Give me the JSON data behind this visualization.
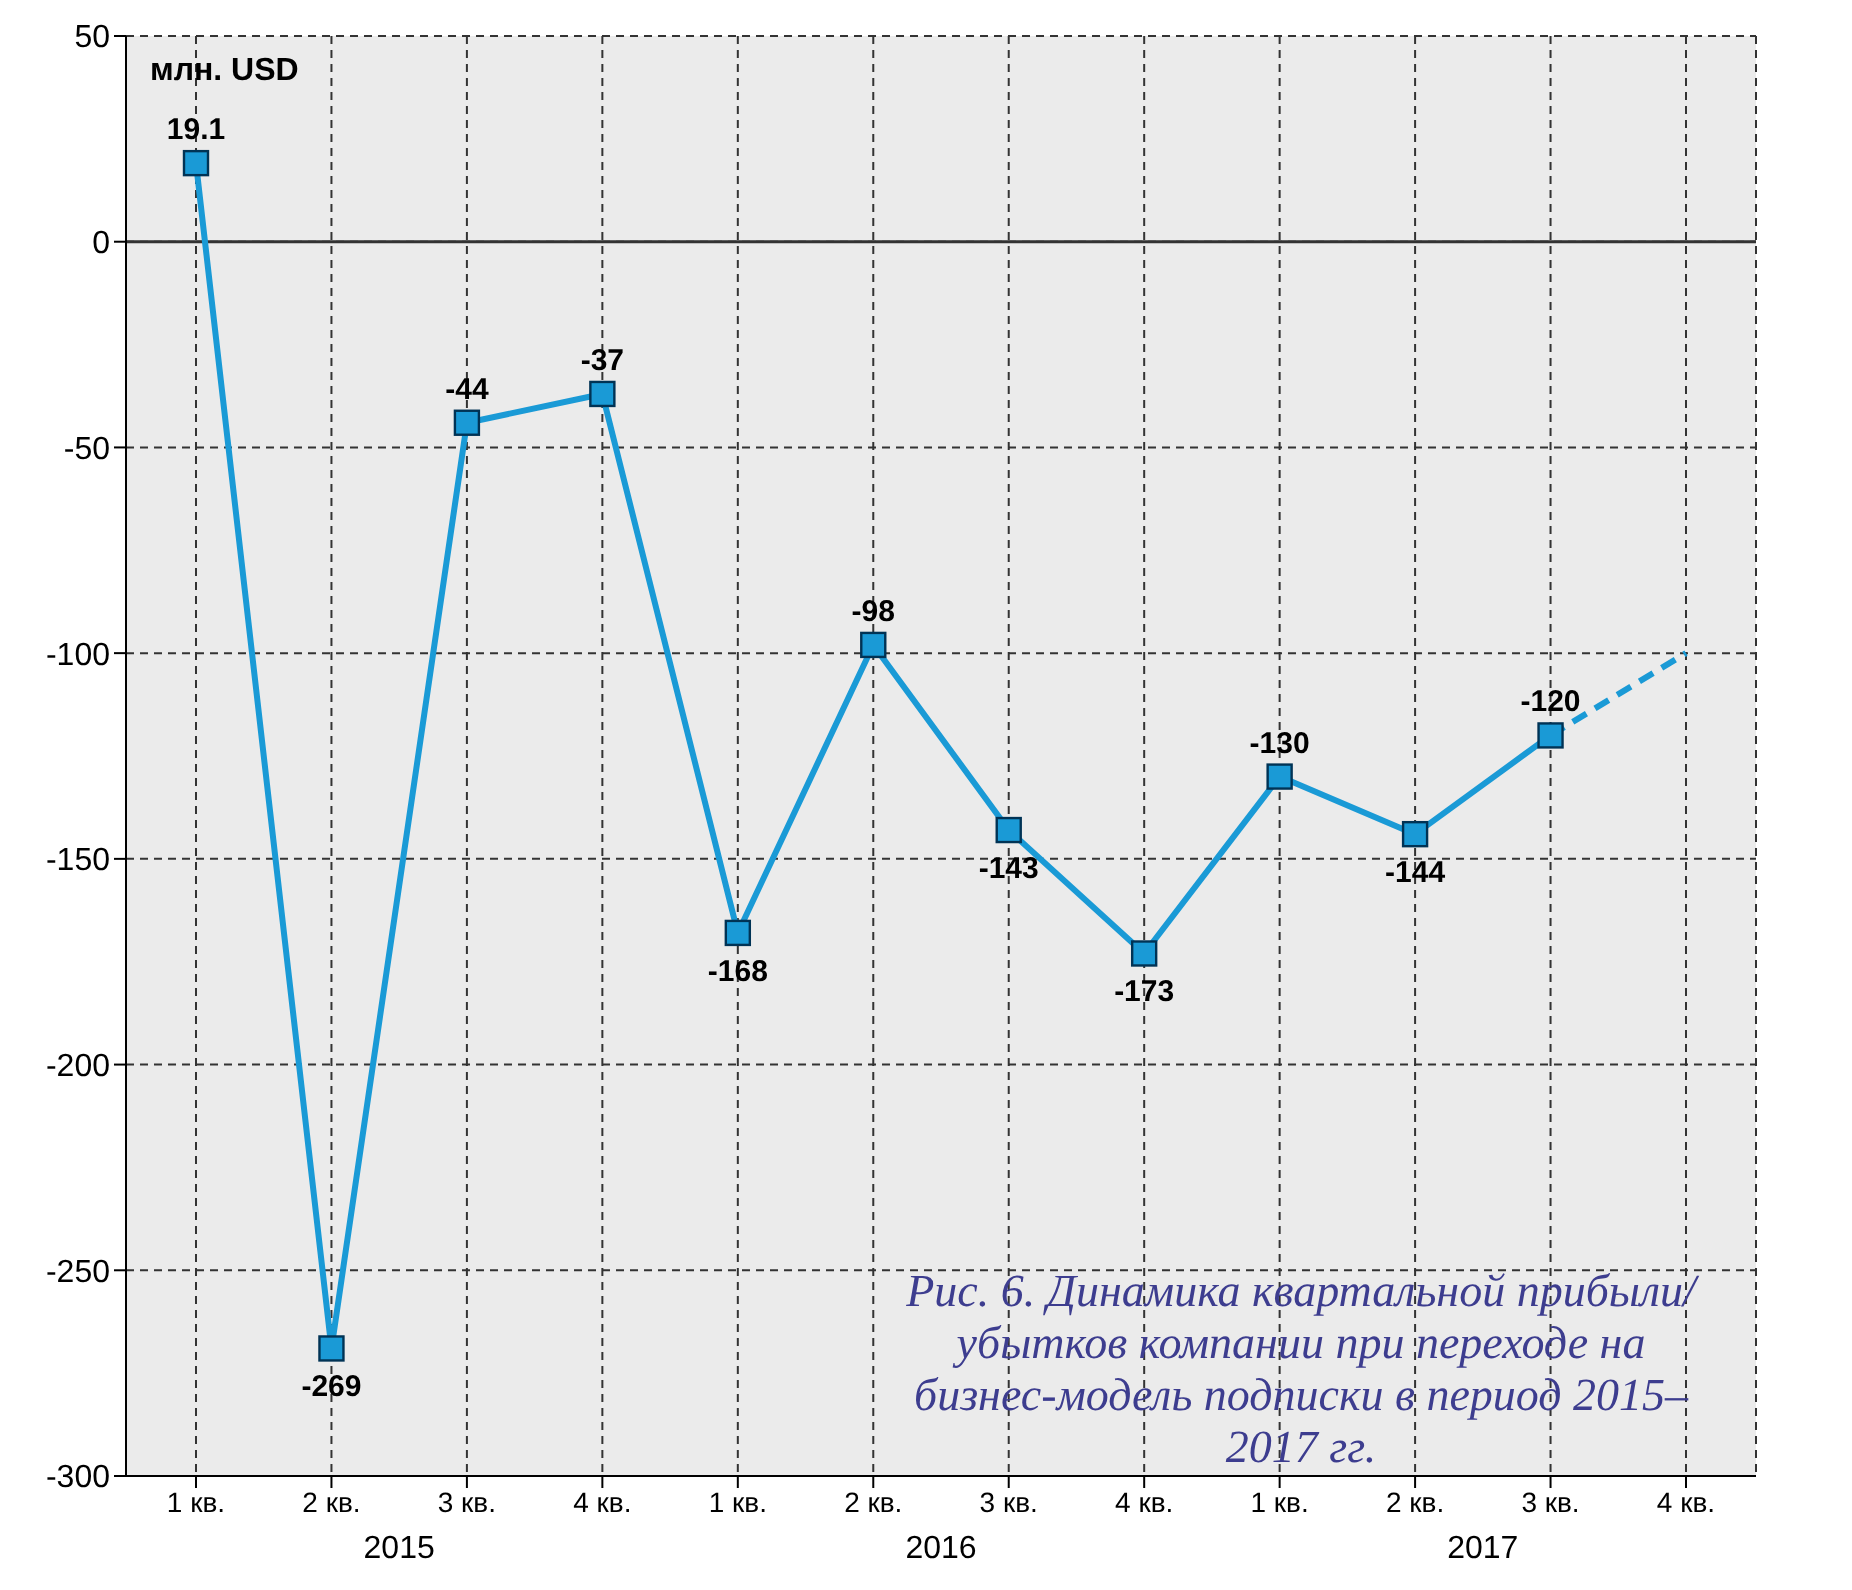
{
  "chart_data": {
    "type": "line",
    "title": "Рис. 6. Динамика квартальной прибыли/убытков компании при переходе на бизнес-модель подписки в период 2015–2017 гг.",
    "ylabel": "млн. USD",
    "categories": [
      "1 кв.",
      "2 кв.",
      "3 кв.",
      "4 кв.",
      "1 кв.",
      "2 кв.",
      "3 кв.",
      "4 кв.",
      "1 кв.",
      "2 кв.",
      "3 кв.",
      "4 кв."
    ],
    "annotations": [
      "2015",
      "2016",
      "2017"
    ],
    "series": [
      {
        "color": "#1a9ad6",
        "values": [
          19.1,
          -269,
          -44,
          -37,
          -168,
          -98,
          -143,
          -173,
          -130,
          -144,
          -120,
          null
        ],
        "value_labels": [
          "19.1",
          "-269",
          "-44",
          "-37",
          "-168",
          "-98",
          "-143",
          "-173",
          "-130",
          "-144",
          "-120",
          null
        ],
        "marker": "square",
        "line_style": "solid"
      },
      {
        "color": "#1a9ad6",
        "values": [
          null,
          null,
          null,
          null,
          null,
          null,
          null,
          null,
          null,
          null,
          -120,
          -100
        ],
        "marker": "none",
        "line_style": "dashed"
      }
    ],
    "ylim": [
      -300,
      50
    ],
    "yticks": [
      -300,
      -250,
      -200,
      -150,
      -100,
      -50,
      0,
      50
    ],
    "grid": true,
    "ref_lines": [
      {
        "axis": "y",
        "value": 0,
        "color": "#333333",
        "line_style": "solid"
      }
    ]
  }
}
